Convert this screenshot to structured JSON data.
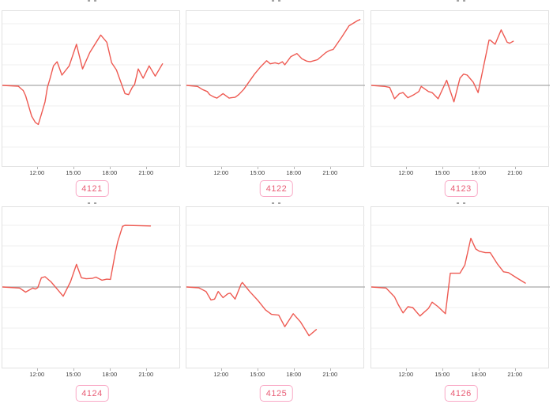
{
  "meta": {
    "description": "Grid of six intraday time-series line charts, each identified by a numeric ID badge"
  },
  "style": {
    "line_color": "#ee5a52",
    "zero_line_color": "#a9a9a9",
    "grid_color": "#efefef",
    "panel_border_color": "#e1e1e1",
    "badge_border_color": "#f9a8c5",
    "badge_text_color": "#e85d75",
    "tick_text_color": "#3b3b3b",
    "tick_mark_color": "#b3b3b3"
  },
  "axis": {
    "tick_labels": [
      "12:00",
      "15:00",
      "18:00",
      "21:00"
    ],
    "tick_hours": [
      12,
      15,
      18,
      21
    ],
    "x_range_hours": [
      9.08,
      23.82
    ],
    "y_unit": "relative value, 1 = one gridline division (y axis unlabeled)",
    "grid": "horizontal only, zero baseline emphasized"
  },
  "chart_data": [
    {
      "type": "line",
      "label": "4121",
      "title": "",
      "x": [
        9.1,
        10.4,
        10.6,
        10.8,
        11.0,
        11.2,
        11.5,
        11.8,
        12.05,
        12.3,
        12.6,
        12.8,
        13.0,
        13.3,
        13.6,
        14.0,
        14.6,
        15.2,
        15.7,
        16.3,
        17.2,
        17.7,
        18.1,
        18.5,
        19.2,
        19.5,
        19.8,
        20.0,
        20.3,
        20.7,
        21.2,
        21.7,
        22.3
      ],
      "y": [
        0,
        -0.04,
        -0.15,
        -0.25,
        -0.5,
        -0.9,
        -1.5,
        -1.8,
        -1.9,
        -1.4,
        -0.8,
        -0.1,
        0.3,
        0.95,
        1.15,
        0.5,
        0.95,
        2.0,
        0.8,
        1.6,
        2.45,
        2.1,
        1.1,
        0.75,
        -0.4,
        -0.45,
        -0.1,
        0.05,
        0.8,
        0.35,
        0.95,
        0.45,
        1.05
      ]
    },
    {
      "type": "line",
      "label": "4122",
      "title": "",
      "x": [
        9.1,
        10.0,
        10.4,
        10.8,
        11.0,
        11.3,
        11.6,
        12.1,
        12.6,
        12.8,
        13.1,
        13.4,
        13.8,
        14.1,
        14.4,
        14.7,
        15.2,
        15.7,
        16.0,
        16.4,
        16.7,
        17.0,
        17.2,
        17.7,
        18.2,
        18.6,
        19.0,
        19.3,
        19.9,
        20.6,
        20.9,
        21.2,
        21.9,
        22.5,
        23.2,
        23.4
      ],
      "y": [
        0,
        -0.05,
        -0.2,
        -0.3,
        -0.45,
        -0.55,
        -0.62,
        -0.4,
        -0.62,
        -0.6,
        -0.58,
        -0.45,
        -0.2,
        0.05,
        0.3,
        0.55,
        0.9,
        1.2,
        1.05,
        1.1,
        1.05,
        1.15,
        1.0,
        1.4,
        1.55,
        1.3,
        1.18,
        1.15,
        1.25,
        1.6,
        1.7,
        1.75,
        2.35,
        2.9,
        3.15,
        3.2
      ]
    },
    {
      "type": "line",
      "label": "4123",
      "title": "",
      "x": [
        9.1,
        10.2,
        10.6,
        11.0,
        11.4,
        11.7,
        12.1,
        12.6,
        13.0,
        13.2,
        13.8,
        14.1,
        14.6,
        15.3,
        15.9,
        16.4,
        16.7,
        17.0,
        17.5,
        17.9,
        18.8,
        18.9,
        19.3,
        19.8,
        20.3,
        20.5,
        20.8
      ],
      "y": [
        0,
        -0.05,
        -0.1,
        -0.65,
        -0.4,
        -0.35,
        -0.6,
        -0.45,
        -0.3,
        -0.05,
        -0.3,
        -0.35,
        -0.65,
        0.25,
        -0.8,
        0.35,
        0.55,
        0.5,
        0.15,
        -0.35,
        2.2,
        2.2,
        2.0,
        2.7,
        2.1,
        2.05,
        2.15
      ]
    },
    {
      "type": "line",
      "label": "4124",
      "title": "",
      "x": [
        9.1,
        10.5,
        11.0,
        11.3,
        11.6,
        11.8,
        12.0,
        12.3,
        12.6,
        13.1,
        13.6,
        14.1,
        14.7,
        15.2,
        15.6,
        16.0,
        16.5,
        16.8,
        17.3,
        17.7,
        18.0,
        18.4,
        18.6,
        19.0,
        19.2,
        21.3
      ],
      "y": [
        0,
        -0.05,
        -0.25,
        -0.15,
        -0.05,
        -0.1,
        -0.03,
        0.45,
        0.5,
        0.25,
        -0.1,
        -0.45,
        0.25,
        1.1,
        0.45,
        0.4,
        0.42,
        0.48,
        0.33,
        0.38,
        0.37,
        1.65,
        2.2,
        2.95,
        3.0,
        2.97
      ]
    },
    {
      "type": "line",
      "label": "4125",
      "title": "",
      "x": [
        9.1,
        10.1,
        10.7,
        11.1,
        11.4,
        11.7,
        12.1,
        12.5,
        12.7,
        13.1,
        13.6,
        13.7,
        14.3,
        15.0,
        15.6,
        16.1,
        16.7,
        17.2,
        17.9,
        18.5,
        19.2,
        19.8
      ],
      "y": [
        0,
        -0.04,
        -0.22,
        -0.63,
        -0.59,
        -0.22,
        -0.52,
        -0.33,
        -0.3,
        -0.59,
        0.15,
        0.22,
        -0.22,
        -0.67,
        -1.11,
        -1.33,
        -1.37,
        -1.93,
        -1.3,
        -1.7,
        -2.37,
        -2.07
      ]
    },
    {
      "type": "line",
      "label": "4126",
      "title": "",
      "x": [
        9.1,
        10.3,
        11.0,
        11.3,
        11.7,
        12.1,
        12.5,
        13.1,
        13.8,
        14.1,
        14.6,
        15.2,
        15.6,
        16.0,
        16.4,
        16.8,
        17.3,
        17.7,
        18.0,
        18.5,
        18.9,
        19.5,
        20.0,
        20.4,
        21.1,
        21.8
      ],
      "y": [
        0,
        -0.05,
        -0.48,
        -0.85,
        -1.26,
        -0.96,
        -1.0,
        -1.41,
        -1.04,
        -0.74,
        -0.96,
        -1.3,
        0.67,
        0.67,
        0.67,
        1.07,
        2.37,
        1.85,
        1.74,
        1.67,
        1.67,
        1.11,
        0.74,
        0.7,
        0.44,
        0.19
      ]
    }
  ]
}
